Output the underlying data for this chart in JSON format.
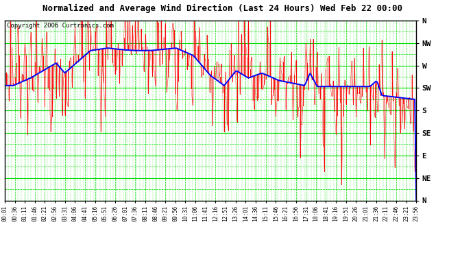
{
  "title": "Normalized and Average Wind Direction (Last 24 Hours) Wed Feb 22 00:00",
  "copyright": "Copyright 2006 Curtronics.com",
  "bg_color": "#ffffff",
  "plot_bg_color": "#ffffff",
  "grid_major_color": "#00dd00",
  "grid_minor_color": "#00dd00",
  "border_color": "#000000",
  "ytick_labels": [
    "N",
    "NW",
    "W",
    "SW",
    "S",
    "SE",
    "E",
    "NE",
    "N"
  ],
  "ytick_values": [
    360,
    315,
    270,
    225,
    180,
    135,
    90,
    45,
    0
  ],
  "ylim": [
    0,
    360
  ],
  "x_tick_labels": [
    "00:01",
    "00:36",
    "01:11",
    "01:46",
    "02:21",
    "02:56",
    "03:31",
    "04:06",
    "04:41",
    "05:16",
    "05:51",
    "06:26",
    "07:01",
    "07:36",
    "08:11",
    "08:46",
    "09:21",
    "09:56",
    "10:31",
    "11:06",
    "11:41",
    "12:16",
    "12:51",
    "13:26",
    "14:01",
    "14:36",
    "15:11",
    "15:46",
    "16:21",
    "16:56",
    "17:31",
    "18:06",
    "18:41",
    "19:16",
    "19:51",
    "20:26",
    "21:01",
    "21:36",
    "22:11",
    "22:46",
    "23:21",
    "23:56"
  ],
  "raw_color": "#ff0000",
  "avg_color": "#0000ff",
  "raw_linewidth": 0.7,
  "avg_linewidth": 1.4
}
